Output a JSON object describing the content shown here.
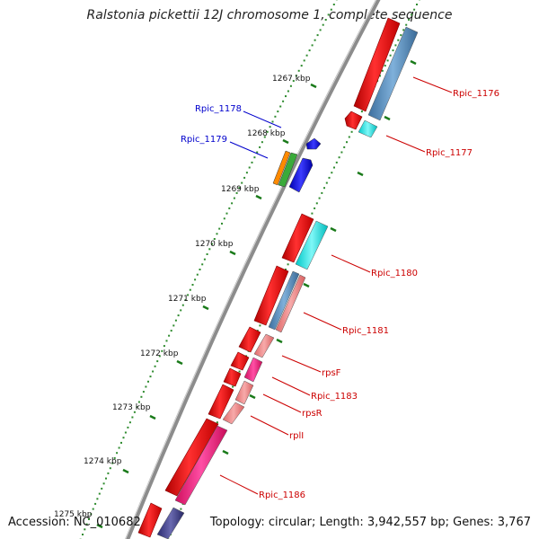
{
  "title": "Ralstonia pickettii 12J chromosome 1, complete sequence",
  "footer": {
    "accession": "Accession: NC_010682",
    "summary": "Topology: circular; Length: 3,942,557 bp; Genes: 3,767"
  },
  "ruler": {
    "ticks": [
      {
        "label": "1267 kbp"
      },
      {
        "label": "1268 kbp"
      },
      {
        "label": "1269 kbp"
      },
      {
        "label": "1270 kbp"
      },
      {
        "label": "1271 kbp"
      },
      {
        "label": "1272 kbp"
      },
      {
        "label": "1273 kbp"
      },
      {
        "label": "1274 kbp"
      },
      {
        "label": "1275 kbp"
      }
    ]
  },
  "genes": [
    {
      "name": "Rpic_1176",
      "label_color": "#cc0000"
    },
    {
      "name": "Rpic_1177",
      "label_color": "#cc0000"
    },
    {
      "name": "Rpic_1178",
      "label_color": "#0000cc"
    },
    {
      "name": "Rpic_1179",
      "label_color": "#0000cc"
    },
    {
      "name": "Rpic_1180",
      "label_color": "#cc0000"
    },
    {
      "name": "Rpic_1181",
      "label_color": "#cc0000"
    },
    {
      "name": "rpsF",
      "label_color": "#cc0000"
    },
    {
      "name": "Rpic_1183",
      "label_color": "#cc0000"
    },
    {
      "name": "rpsR",
      "label_color": "#cc0000"
    },
    {
      "name": "rplI",
      "label_color": "#cc0000"
    },
    {
      "name": "Rpic_1186",
      "label_color": "#cc0000"
    }
  ],
  "colors": {
    "cds": "#ee1111",
    "backbone": "#8c8c8c",
    "tick_major": "#1a7a1a",
    "tick_minor": "#2e8b2e"
  }
}
